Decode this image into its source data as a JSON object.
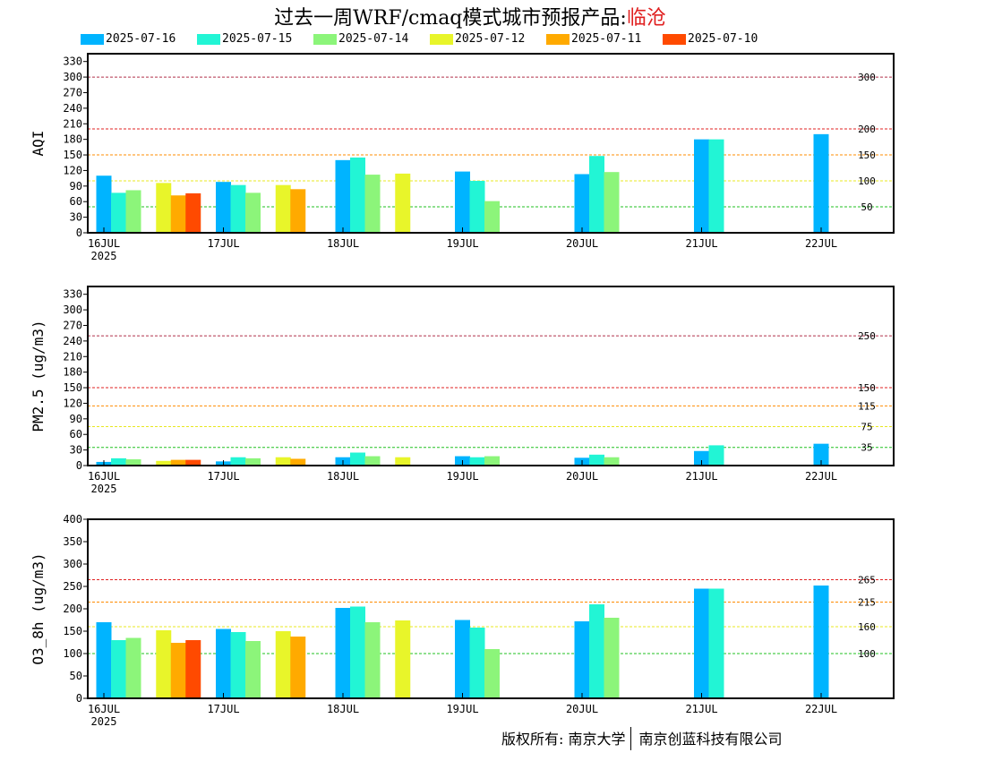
{
  "title": {
    "main": "过去一周WRF/cmaq模式城市预报产品:",
    "city": "临沧"
  },
  "legend": [
    {
      "label": "2025-07-16",
      "color": "#00b4ff"
    },
    {
      "label": "2025-07-15",
      "color": "#22f5d5"
    },
    {
      "label": "2025-07-14",
      "color": "#8cf57a"
    },
    {
      "label": "2025-07-12",
      "color": "#e8f52a"
    },
    {
      "label": "2025-07-11",
      "color": "#ffaa00"
    },
    {
      "label": "2025-07-10",
      "color": "#ff4a00"
    }
  ],
  "footer": {
    "left": "版权所有: 南京大学",
    "right": "南京创蓝科技有限公司"
  },
  "chart_data": [
    {
      "type": "bar",
      "ylabel": "AQI",
      "ylim": [
        0,
        345
      ],
      "yticks": [
        0,
        30,
        60,
        90,
        120,
        150,
        180,
        210,
        240,
        270,
        300,
        330
      ],
      "xticks": [
        "16JUL",
        "17JUL",
        "18JUL",
        "19JUL",
        "20JUL",
        "21JUL",
        "22JUL"
      ],
      "year_label": "2025",
      "thresholds": [
        {
          "value": 300,
          "label": "300",
          "color": "#b0304a"
        },
        {
          "value": 200,
          "label": "200",
          "color": "#e02020"
        },
        {
          "value": 150,
          "label": "150",
          "color": "#ff8c00"
        },
        {
          "value": 100,
          "label": "100",
          "color": "#e8e820"
        },
        {
          "value": 50,
          "label": "50",
          "color": "#20c020"
        }
      ],
      "groups": [
        {
          "day": 0.0,
          "bars": [
            [
              "2025-07-16",
              110
            ],
            [
              "2025-07-15",
              77
            ],
            [
              "2025-07-14",
              82
            ]
          ]
        },
        {
          "day": 0.5,
          "bars": [
            [
              "2025-07-12",
              96
            ],
            [
              "2025-07-11",
              72
            ],
            [
              "2025-07-10",
              76
            ]
          ]
        },
        {
          "day": 1.0,
          "bars": [
            [
              "2025-07-16",
              98
            ],
            [
              "2025-07-15",
              92
            ],
            [
              "2025-07-14",
              77
            ]
          ]
        },
        {
          "day": 1.5,
          "bars": [
            [
              "2025-07-12",
              92
            ],
            [
              "2025-07-11",
              84
            ]
          ]
        },
        {
          "day": 2.0,
          "bars": [
            [
              "2025-07-16",
              140
            ],
            [
              "2025-07-15",
              145
            ],
            [
              "2025-07-14",
              112
            ]
          ]
        },
        {
          "day": 2.5,
          "bars": [
            [
              "2025-07-12",
              114
            ]
          ]
        },
        {
          "day": 3.0,
          "bars": [
            [
              "2025-07-16",
              118
            ],
            [
              "2025-07-15",
              100
            ],
            [
              "2025-07-14",
              61
            ]
          ]
        },
        {
          "day": 4.0,
          "bars": [
            [
              "2025-07-16",
              113
            ],
            [
              "2025-07-15",
              148
            ],
            [
              "2025-07-14",
              117
            ]
          ]
        },
        {
          "day": 5.0,
          "bars": [
            [
              "2025-07-16",
              180
            ],
            [
              "2025-07-15",
              180
            ]
          ]
        },
        {
          "day": 6.0,
          "bars": [
            [
              "2025-07-16",
              190
            ]
          ]
        }
      ]
    },
    {
      "type": "bar",
      "ylabel": "PM2.5 (ug/m3)",
      "ylim": [
        0,
        345
      ],
      "yticks": [
        0,
        30,
        60,
        90,
        120,
        150,
        180,
        210,
        240,
        270,
        300,
        330
      ],
      "xticks": [
        "16JUL",
        "17JUL",
        "18JUL",
        "19JUL",
        "20JUL",
        "21JUL",
        "22JUL"
      ],
      "year_label": "2025",
      "thresholds": [
        {
          "value": 250,
          "label": "250",
          "color": "#b0304a"
        },
        {
          "value": 150,
          "label": "150",
          "color": "#e02020"
        },
        {
          "value": 115,
          "label": "115",
          "color": "#ff8c00"
        },
        {
          "value": 75,
          "label": "75",
          "color": "#e8e820"
        },
        {
          "value": 35,
          "label": "35",
          "color": "#20c020"
        }
      ],
      "groups": [
        {
          "day": 0.0,
          "bars": [
            [
              "2025-07-16",
              7
            ],
            [
              "2025-07-15",
              14
            ],
            [
              "2025-07-14",
              12
            ]
          ]
        },
        {
          "day": 0.5,
          "bars": [
            [
              "2025-07-12",
              9
            ],
            [
              "2025-07-11",
              11
            ],
            [
              "2025-07-10",
              11
            ]
          ]
        },
        {
          "day": 1.0,
          "bars": [
            [
              "2025-07-16",
              8
            ],
            [
              "2025-07-15",
              16
            ],
            [
              "2025-07-14",
              14
            ]
          ]
        },
        {
          "day": 1.5,
          "bars": [
            [
              "2025-07-12",
              16
            ],
            [
              "2025-07-11",
              13
            ]
          ]
        },
        {
          "day": 2.0,
          "bars": [
            [
              "2025-07-16",
              16
            ],
            [
              "2025-07-15",
              25
            ],
            [
              "2025-07-14",
              18
            ]
          ]
        },
        {
          "day": 2.5,
          "bars": [
            [
              "2025-07-12",
              16
            ]
          ]
        },
        {
          "day": 3.0,
          "bars": [
            [
              "2025-07-16",
              18
            ],
            [
              "2025-07-15",
              16
            ],
            [
              "2025-07-14",
              18
            ]
          ]
        },
        {
          "day": 4.0,
          "bars": [
            [
              "2025-07-16",
              15
            ],
            [
              "2025-07-15",
              21
            ],
            [
              "2025-07-14",
              16
            ]
          ]
        },
        {
          "day": 5.0,
          "bars": [
            [
              "2025-07-16",
              28
            ],
            [
              "2025-07-15",
              39
            ]
          ]
        },
        {
          "day": 6.0,
          "bars": [
            [
              "2025-07-16",
              42
            ]
          ]
        }
      ]
    },
    {
      "type": "bar",
      "ylabel": "O3_8h (ug/m3)",
      "ylim": [
        0,
        400
      ],
      "yticks": [
        0,
        50,
        100,
        150,
        200,
        250,
        300,
        350,
        400
      ],
      "xticks": [
        "16JUL",
        "17JUL",
        "18JUL",
        "19JUL",
        "20JUL",
        "21JUL",
        "22JUL"
      ],
      "year_label": "2025",
      "thresholds": [
        {
          "value": 265,
          "label": "265",
          "color": "#e02020"
        },
        {
          "value": 215,
          "label": "215",
          "color": "#ff8c00"
        },
        {
          "value": 160,
          "label": "160",
          "color": "#e8e820"
        },
        {
          "value": 100,
          "label": "100",
          "color": "#20c020"
        }
      ],
      "groups": [
        {
          "day": 0.0,
          "bars": [
            [
              "2025-07-16",
              170
            ],
            [
              "2025-07-15",
              130
            ],
            [
              "2025-07-14",
              135
            ]
          ]
        },
        {
          "day": 0.5,
          "bars": [
            [
              "2025-07-12",
              152
            ],
            [
              "2025-07-11",
              124
            ],
            [
              "2025-07-10",
              130
            ]
          ]
        },
        {
          "day": 1.0,
          "bars": [
            [
              "2025-07-16",
              155
            ],
            [
              "2025-07-15",
              148
            ],
            [
              "2025-07-14",
              128
            ]
          ]
        },
        {
          "day": 1.5,
          "bars": [
            [
              "2025-07-12",
              150
            ],
            [
              "2025-07-11",
              138
            ]
          ]
        },
        {
          "day": 2.0,
          "bars": [
            [
              "2025-07-16",
              202
            ],
            [
              "2025-07-15",
              205
            ],
            [
              "2025-07-14",
              170
            ]
          ]
        },
        {
          "day": 2.5,
          "bars": [
            [
              "2025-07-12",
              174
            ]
          ]
        },
        {
          "day": 3.0,
          "bars": [
            [
              "2025-07-16",
              175
            ],
            [
              "2025-07-15",
              158
            ],
            [
              "2025-07-14",
              110
            ]
          ]
        },
        {
          "day": 4.0,
          "bars": [
            [
              "2025-07-16",
              172
            ],
            [
              "2025-07-15",
              210
            ],
            [
              "2025-07-14",
              180
            ]
          ]
        },
        {
          "day": 5.0,
          "bars": [
            [
              "2025-07-16",
              245
            ],
            [
              "2025-07-15",
              245
            ]
          ]
        },
        {
          "day": 6.0,
          "bars": [
            [
              "2025-07-16",
              252
            ]
          ]
        }
      ]
    }
  ]
}
